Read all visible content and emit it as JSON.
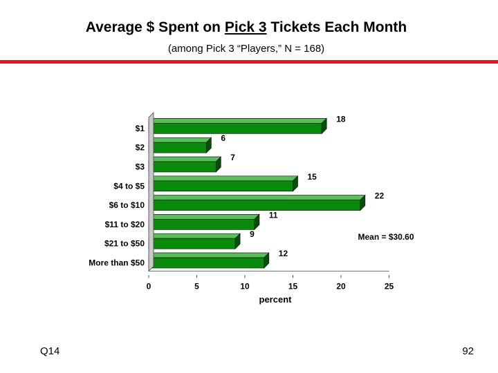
{
  "header": {
    "title_before": "Average $ Spent on ",
    "title_underlined": "Pick 3",
    "title_after": " Tickets Each Month",
    "subtitle": "(among Pick 3 “Players,” N = 168)"
  },
  "chart_data": {
    "type": "bar",
    "orientation": "horizontal",
    "categories": [
      "$1",
      "$2",
      "$3",
      "$4 to $5",
      "$6 to $10",
      "$11 to $20",
      "$21 to $50",
      "More than $50"
    ],
    "values": [
      18,
      6,
      7,
      15,
      22,
      11,
      9,
      12
    ],
    "xlabel": "percent",
    "ylabel": "",
    "xlim": [
      0,
      25
    ],
    "xticks": [
      0,
      5,
      10,
      15,
      20,
      25
    ],
    "annotation": "Mean = $30.60",
    "bar_color": "#0a8a0a",
    "grid": false
  },
  "footer": {
    "question": "Q14",
    "page": "92"
  },
  "colors": {
    "rule": "#e8141b",
    "bar": "#0a8a0a"
  }
}
